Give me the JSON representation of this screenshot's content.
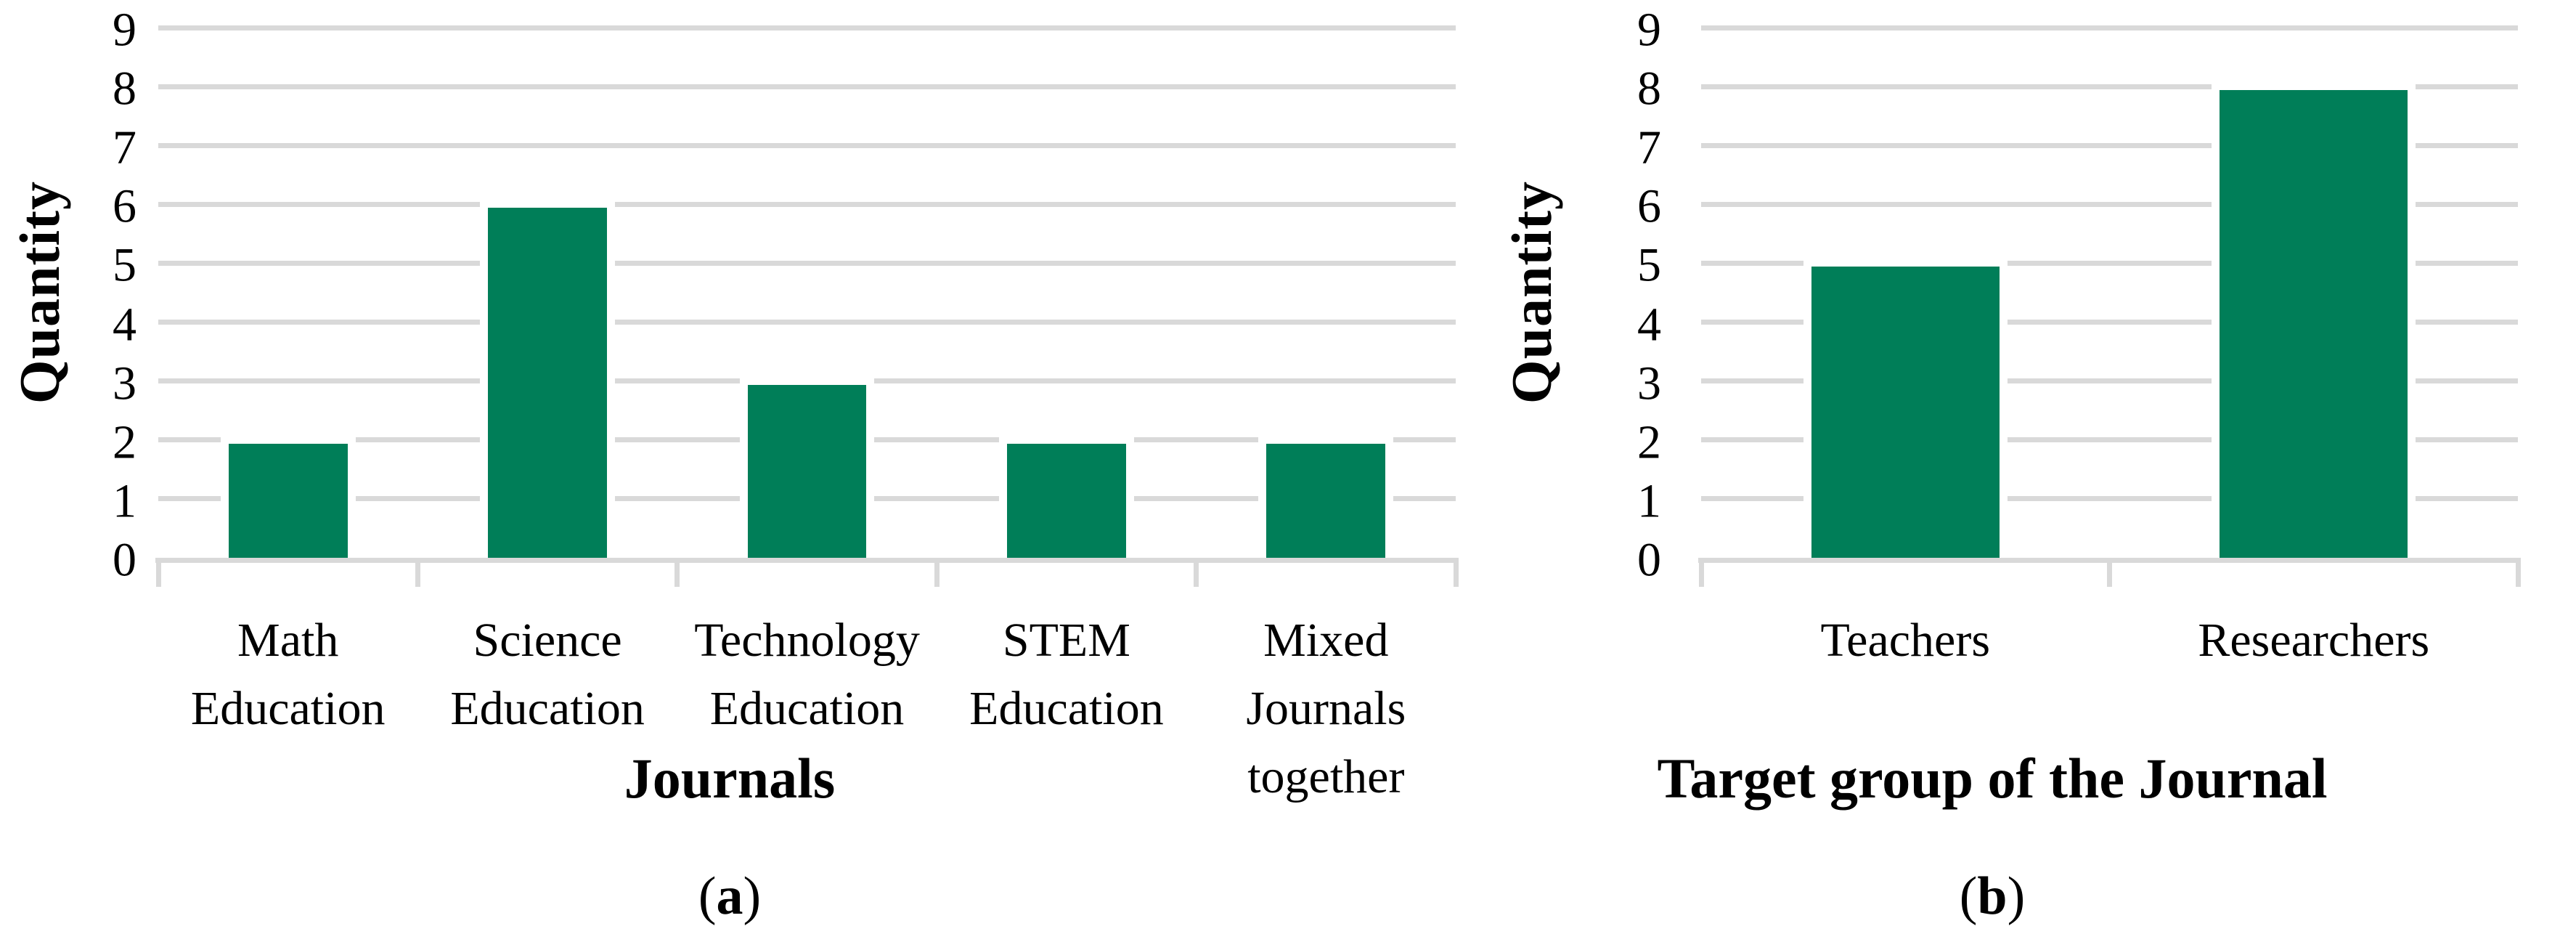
{
  "chart_data": [
    {
      "id": "a",
      "type": "bar",
      "title": "",
      "xlabel": "Journals",
      "ylabel": "Quantity",
      "ylim": [
        0,
        9
      ],
      "ytick_step": 1,
      "grid": "horizontal",
      "legend": "none",
      "categories": [
        "Math Education",
        "Science Education",
        "Technology Education",
        "STEM Education",
        "Mixed Journals together"
      ],
      "category_lines": [
        [
          "Math",
          "Education"
        ],
        [
          "Science",
          "Education"
        ],
        [
          "Technology",
          "Education"
        ],
        [
          "STEM",
          "Education"
        ],
        [
          "Mixed",
          "Journals",
          "together"
        ]
      ],
      "values": [
        2,
        6,
        3,
        2,
        2
      ],
      "bar_color": "#007E58",
      "gridline_color": "#D9D9D9",
      "caption": {
        "open": "(",
        "letter": "a",
        "close": ")"
      }
    },
    {
      "id": "b",
      "type": "bar",
      "title": "",
      "xlabel": "Target group of the Journal",
      "ylabel": "Quantity",
      "ylim": [
        0,
        9
      ],
      "ytick_step": 1,
      "grid": "horizontal",
      "legend": "none",
      "categories": [
        "Teachers",
        "Researchers"
      ],
      "category_lines": [
        [
          "Teachers"
        ],
        [
          "Researchers"
        ]
      ],
      "values": [
        5,
        8
      ],
      "bar_color": "#007E58",
      "gridline_color": "#D9D9D9",
      "caption": {
        "open": "(",
        "letter": "b",
        "close": ")"
      }
    }
  ]
}
